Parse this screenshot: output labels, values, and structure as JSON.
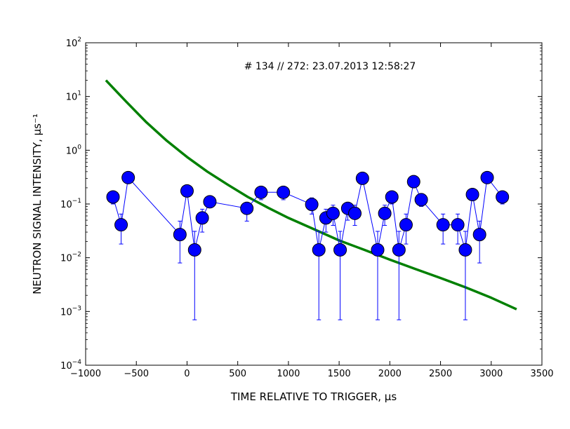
{
  "chart_data": {
    "type": "scatter",
    "title": "",
    "annotation": "# 134 // 272: 23.07.2013 12:58:27",
    "xlabel": "TIME RELATIVE TO TRIGGER, μs",
    "ylabel": "NEUTRON SIGNAL INTENSITY, μs⁻¹",
    "xlim": [
      -1000,
      3500
    ],
    "ylim": [
      0.0001,
      100
    ],
    "yscale": "log",
    "x_ticks": [
      -1000,
      -500,
      0,
      500,
      1000,
      1500,
      2000,
      2500,
      3000,
      3500
    ],
    "x_tick_labels": [
      "−1000",
      "−500",
      "0",
      "500",
      "1000",
      "1500",
      "2000",
      "2500",
      "3000",
      "3500"
    ],
    "y_ticks": [
      {
        "value": 0.0001,
        "base": "10",
        "exp": "-4"
      },
      {
        "value": 0.001,
        "base": "10",
        "exp": "-3"
      },
      {
        "value": 0.01,
        "base": "10",
        "exp": "-2"
      },
      {
        "value": 0.1,
        "base": "10",
        "exp": "-1"
      },
      {
        "value": 1,
        "base": "10",
        "exp": "0"
      },
      {
        "value": 10,
        "base": "10",
        "exp": "1"
      },
      {
        "value": 100,
        "base": "10",
        "exp": "2"
      }
    ],
    "grid": false,
    "series": [
      {
        "color": "#0000ff",
        "marker": "circle",
        "points": [
          {
            "x": -730,
            "y": 0.135,
            "lo": 0.1,
            "hi": 0.16
          },
          {
            "x": -650,
            "y": 0.041,
            "lo": 0.018,
            "hi": 0.065
          },
          {
            "x": -580,
            "y": 0.31,
            "lo": 0.25,
            "hi": 0.37
          },
          {
            "x": -70,
            "y": 0.027,
            "lo": 0.008,
            "hi": 0.048
          },
          {
            "x": 0,
            "y": 0.175,
            "lo": 0.14,
            "hi": 0.21
          },
          {
            "x": 75,
            "y": 0.014,
            "lo": 0.0007,
            "hi": 0.031
          },
          {
            "x": 150,
            "y": 0.055,
            "lo": 0.03,
            "hi": 0.08
          },
          {
            "x": 225,
            "y": 0.11,
            "lo": 0.085,
            "hi": 0.135
          },
          {
            "x": 590,
            "y": 0.083,
            "lo": 0.048,
            "hi": 0.1
          },
          {
            "x": 730,
            "y": 0.165,
            "lo": 0.12,
            "hi": 0.2
          },
          {
            "x": 950,
            "y": 0.165,
            "lo": 0.12,
            "hi": 0.2
          },
          {
            "x": 1230,
            "y": 0.098,
            "lo": 0.065,
            "hi": 0.13
          },
          {
            "x": 1300,
            "y": 0.014,
            "lo": 0.0007,
            "hi": 0.031
          },
          {
            "x": 1370,
            "y": 0.055,
            "lo": 0.03,
            "hi": 0.08
          },
          {
            "x": 1440,
            "y": 0.067,
            "lo": 0.04,
            "hi": 0.095
          },
          {
            "x": 1510,
            "y": 0.014,
            "lo": 0.0007,
            "hi": 0.031
          },
          {
            "x": 1585,
            "y": 0.083,
            "lo": 0.05,
            "hi": 0.1
          },
          {
            "x": 1655,
            "y": 0.067,
            "lo": 0.04,
            "hi": 0.095
          },
          {
            "x": 1730,
            "y": 0.3,
            "lo": 0.24,
            "hi": 0.36
          },
          {
            "x": 1880,
            "y": 0.014,
            "lo": 0.0007,
            "hi": 0.031
          },
          {
            "x": 1950,
            "y": 0.067,
            "lo": 0.04,
            "hi": 0.095
          },
          {
            "x": 2020,
            "y": 0.135,
            "lo": 0.1,
            "hi": 0.17
          },
          {
            "x": 2090,
            "y": 0.014,
            "lo": 0.0007,
            "hi": 0.031
          },
          {
            "x": 2160,
            "y": 0.041,
            "lo": 0.018,
            "hi": 0.065
          },
          {
            "x": 2235,
            "y": 0.26,
            "lo": 0.21,
            "hi": 0.31
          },
          {
            "x": 2310,
            "y": 0.12,
            "lo": 0.09,
            "hi": 0.15
          },
          {
            "x": 2525,
            "y": 0.041,
            "lo": 0.018,
            "hi": 0.065
          },
          {
            "x": 2670,
            "y": 0.041,
            "lo": 0.018,
            "hi": 0.065
          },
          {
            "x": 2745,
            "y": 0.014,
            "lo": 0.0007,
            "hi": 0.031
          },
          {
            "x": 2815,
            "y": 0.15,
            "lo": 0.12,
            "hi": 0.18
          },
          {
            "x": 2885,
            "y": 0.027,
            "lo": 0.008,
            "hi": 0.048
          },
          {
            "x": 2960,
            "y": 0.31,
            "lo": 0.25,
            "hi": 0.37
          },
          {
            "x": 3110,
            "y": 0.135,
            "lo": 0.1,
            "hi": 0.16
          }
        ]
      },
      {
        "type": "line",
        "color": "#008000",
        "points": [
          {
            "x": -800,
            "y": 20
          },
          {
            "x": -600,
            "y": 8.0
          },
          {
            "x": -400,
            "y": 3.3
          },
          {
            "x": -200,
            "y": 1.5
          },
          {
            "x": 0,
            "y": 0.75
          },
          {
            "x": 200,
            "y": 0.4
          },
          {
            "x": 400,
            "y": 0.23
          },
          {
            "x": 600,
            "y": 0.135
          },
          {
            "x": 800,
            "y": 0.085
          },
          {
            "x": 1000,
            "y": 0.055
          },
          {
            "x": 1250,
            "y": 0.034
          },
          {
            "x": 1500,
            "y": 0.021
          },
          {
            "x": 1750,
            "y": 0.014
          },
          {
            "x": 2000,
            "y": 0.0092
          },
          {
            "x": 2250,
            "y": 0.0062
          },
          {
            "x": 2500,
            "y": 0.0042
          },
          {
            "x": 2750,
            "y": 0.0028
          },
          {
            "x": 3000,
            "y": 0.0018
          },
          {
            "x": 3250,
            "y": 0.0011
          }
        ]
      }
    ]
  }
}
